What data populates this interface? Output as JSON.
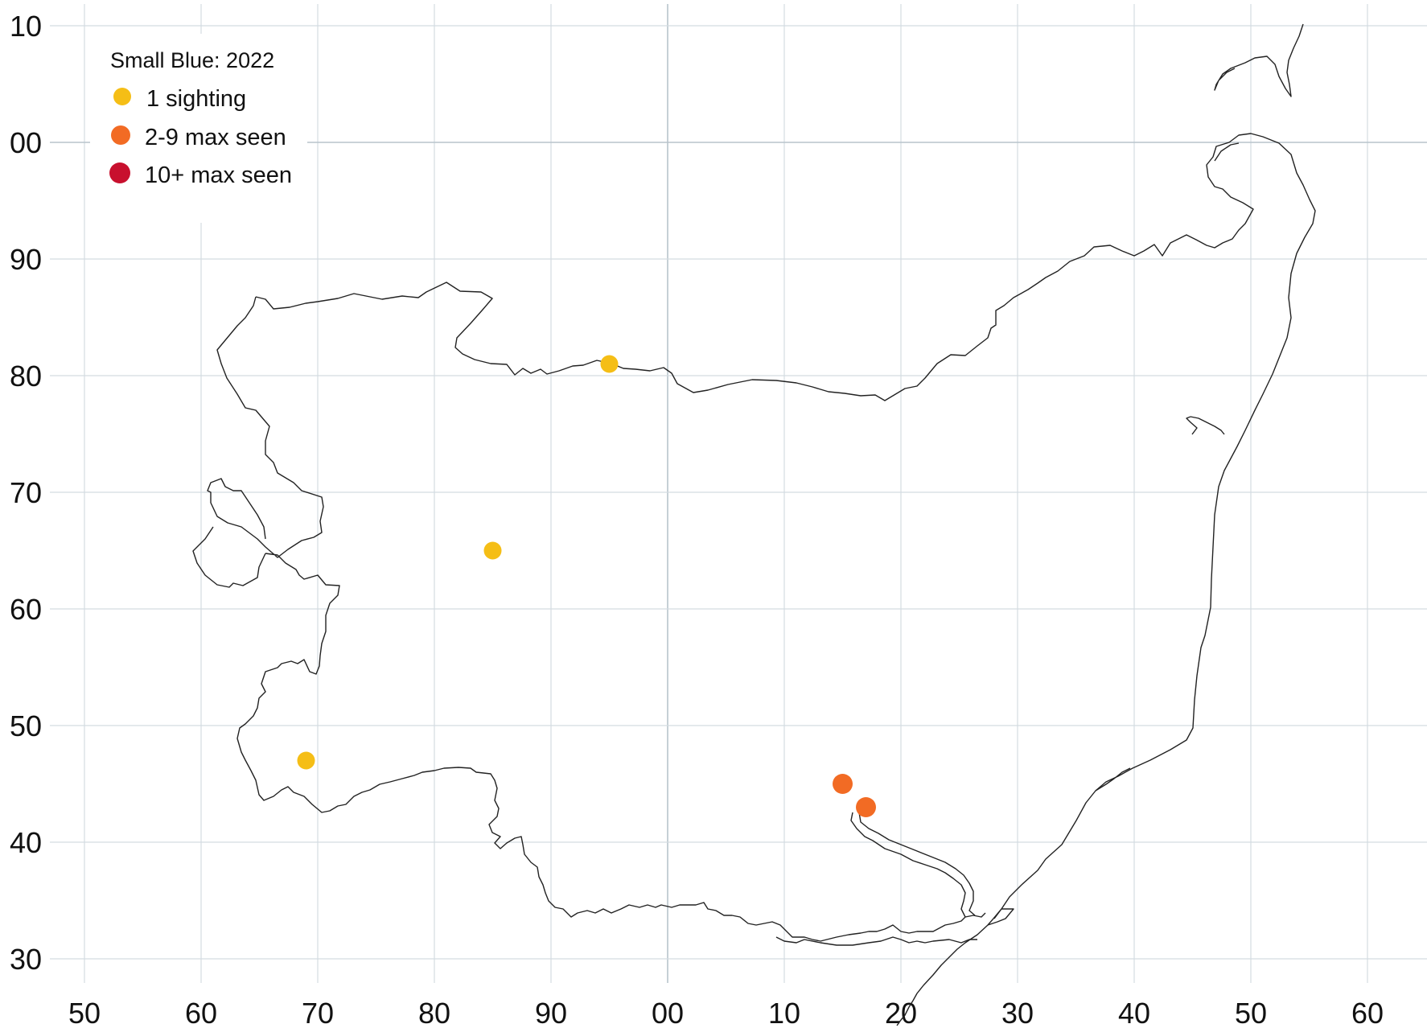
{
  "legend": {
    "title": "Small Blue:  2022",
    "entries": [
      {
        "label": "1 sighting",
        "color": "#F5BE16"
      },
      {
        "label": "2-9 max seen",
        "color": "#F26B24"
      },
      {
        "label": "10+ max seen",
        "color": "#C8102E"
      }
    ]
  },
  "axes": {
    "x_ticks": [
      "50",
      "60",
      "70",
      "80",
      "90",
      "00",
      "10",
      "20",
      "30",
      "40",
      "50",
      "60"
    ],
    "y_ticks": [
      "10",
      "00",
      "90",
      "80",
      "70",
      "60",
      "50",
      "40",
      "30"
    ],
    "grid": true
  },
  "chart_data": {
    "type": "scatter",
    "x": [
      95,
      85,
      69,
      115,
      117
    ],
    "y": [
      81,
      65,
      47,
      45,
      43
    ],
    "category": [
      "1 sighting",
      "1 sighting",
      "1 sighting",
      "2-9 max seen",
      "2-9 max seen"
    ]
  },
  "colors": {
    "grid": "#D4DCE1",
    "grid_major": "#B8C4CB",
    "boundary": "#222222",
    "background": "#FFFFFF"
  }
}
